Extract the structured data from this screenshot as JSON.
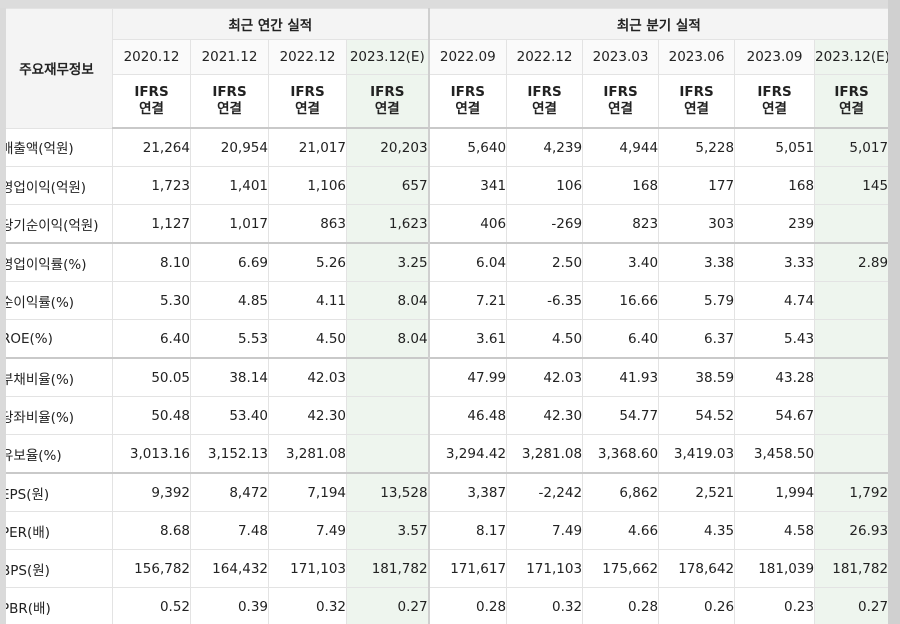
{
  "header": {
    "label_column": "주요재무정보",
    "annual_group": "최근 연간 실적",
    "quarter_group": "최근 분기 실적"
  },
  "periods": [
    {
      "label": "2020.12",
      "basis_1": "IFRS",
      "basis_2": "연결",
      "estimate": false
    },
    {
      "label": "2021.12",
      "basis_1": "IFRS",
      "basis_2": "연결",
      "estimate": false
    },
    {
      "label": "2022.12",
      "basis_1": "IFRS",
      "basis_2": "연결",
      "estimate": false
    },
    {
      "label": "2023.12(E)",
      "basis_1": "IFRS",
      "basis_2": "연결",
      "estimate": true
    },
    {
      "label": "2022.09",
      "basis_1": "IFRS",
      "basis_2": "연결",
      "estimate": false
    },
    {
      "label": "2022.12",
      "basis_1": "IFRS",
      "basis_2": "연결",
      "estimate": false
    },
    {
      "label": "2023.03",
      "basis_1": "IFRS",
      "basis_2": "연결",
      "estimate": false
    },
    {
      "label": "2023.06",
      "basis_1": "IFRS",
      "basis_2": "연결",
      "estimate": false
    },
    {
      "label": "2023.09",
      "basis_1": "IFRS",
      "basis_2": "연결",
      "estimate": false
    },
    {
      "label": "2023.12(E)",
      "basis_1": "IFRS",
      "basis_2": "연결",
      "estimate": true
    }
  ],
  "rows": [
    {
      "label": "매출액(억원)",
      "values": [
        "21,264",
        "20,954",
        "21,017",
        "20,203",
        "5,640",
        "4,239",
        "4,944",
        "5,228",
        "5,051",
        "5,017"
      ]
    },
    {
      "label": "영업이익(억원)",
      "values": [
        "1,723",
        "1,401",
        "1,106",
        "657",
        "341",
        "106",
        "168",
        "177",
        "168",
        "145"
      ]
    },
    {
      "label": "당기순이익(억원)",
      "values": [
        "1,127",
        "1,017",
        "863",
        "1,623",
        "406",
        "-269",
        "823",
        "303",
        "239",
        ""
      ]
    },
    {
      "label": "영업이익률(%)",
      "values": [
        "8.10",
        "6.69",
        "5.26",
        "3.25",
        "6.04",
        "2.50",
        "3.40",
        "3.38",
        "3.33",
        "2.89"
      ]
    },
    {
      "label": "순이익률(%)",
      "values": [
        "5.30",
        "4.85",
        "4.11",
        "8.04",
        "7.21",
        "-6.35",
        "16.66",
        "5.79",
        "4.74",
        ""
      ]
    },
    {
      "label": "ROE(%)",
      "values": [
        "6.40",
        "5.53",
        "4.50",
        "8.04",
        "3.61",
        "4.50",
        "6.40",
        "6.37",
        "5.43",
        ""
      ]
    },
    {
      "label": "부채비율(%)",
      "values": [
        "50.05",
        "38.14",
        "42.03",
        "",
        "47.99",
        "42.03",
        "41.93",
        "38.59",
        "43.28",
        ""
      ]
    },
    {
      "label": "당좌비율(%)",
      "values": [
        "50.48",
        "53.40",
        "42.30",
        "",
        "46.48",
        "42.30",
        "54.77",
        "54.52",
        "54.67",
        ""
      ]
    },
    {
      "label": "유보율(%)",
      "values": [
        "3,013.16",
        "3,152.13",
        "3,281.08",
        "",
        "3,294.42",
        "3,281.08",
        "3,368.60",
        "3,419.03",
        "3,458.50",
        ""
      ]
    },
    {
      "label": "EPS(원)",
      "values": [
        "9,392",
        "8,472",
        "7,194",
        "13,528",
        "3,387",
        "-2,242",
        "6,862",
        "2,521",
        "1,994",
        "1,792"
      ]
    },
    {
      "label": "PER(배)",
      "values": [
        "8.68",
        "7.48",
        "7.49",
        "3.57",
        "8.17",
        "7.49",
        "4.66",
        "4.35",
        "4.58",
        "26.93"
      ]
    },
    {
      "label": "BPS(원)",
      "values": [
        "156,782",
        "164,432",
        "171,103",
        "181,782",
        "171,617",
        "171,103",
        "175,662",
        "178,642",
        "181,039",
        "181,782"
      ]
    },
    {
      "label": "PBR(배)",
      "values": [
        "0.52",
        "0.39",
        "0.32",
        "0.27",
        "0.28",
        "0.32",
        "0.28",
        "0.26",
        "0.23",
        "0.27"
      ]
    }
  ],
  "colors": {
    "ifrs_text": "#ff6a00",
    "negative": "#e3342f",
    "estimate_bg": "#eef5ee"
  }
}
